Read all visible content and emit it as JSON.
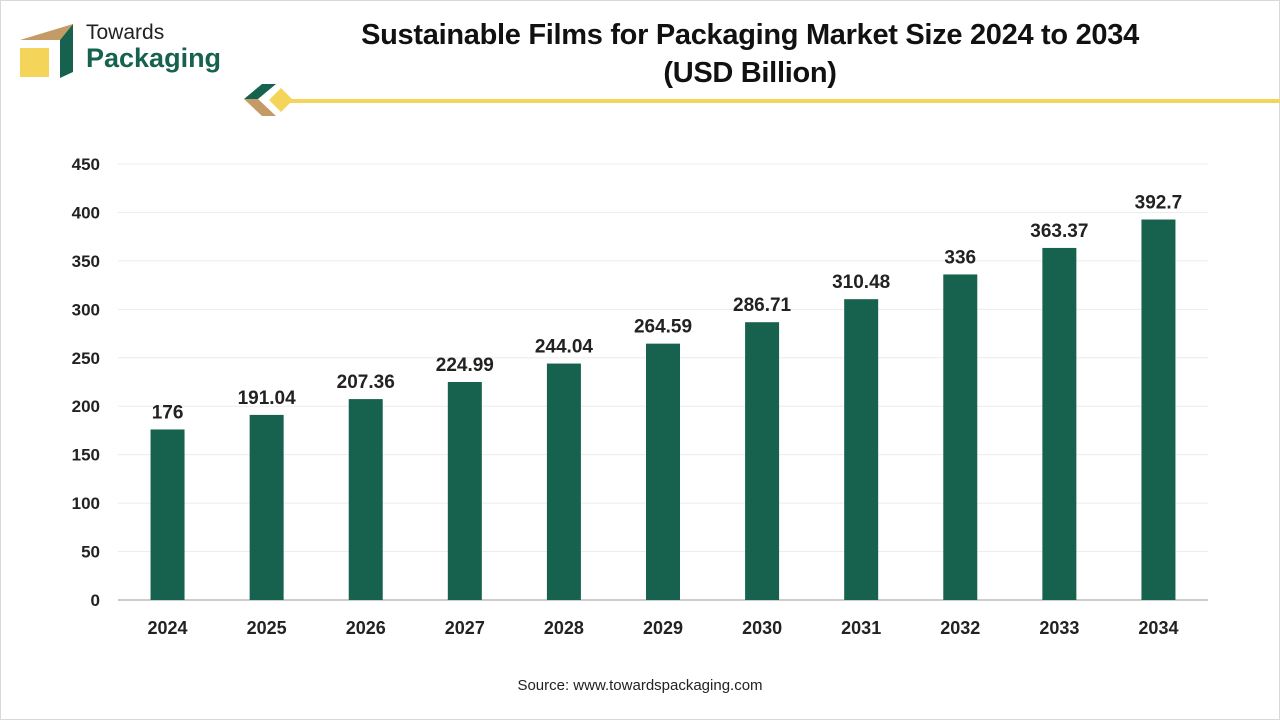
{
  "logo": {
    "line1": "Towards",
    "line2": "Packaging"
  },
  "colors": {
    "bar": "#17624f",
    "accent": "#f5d45a",
    "logo_tan": "#c49a66"
  },
  "source": "Source: www.towardspackaging.com",
  "chart_data": {
    "type": "bar",
    "title": "Sustainable Films for Packaging Market Size 2024 to 2034 (USD Billion)",
    "title_lines": [
      "Sustainable Films for Packaging Market Size 2024 to 2034",
      "(USD Billion)"
    ],
    "categories": [
      "2024",
      "2025",
      "2026",
      "2027",
      "2028",
      "2029",
      "2030",
      "2031",
      "2032",
      "2033",
      "2034"
    ],
    "values": [
      176,
      191.04,
      207.36,
      224.99,
      244.04,
      264.59,
      286.71,
      310.48,
      336,
      363.37,
      392.7
    ],
    "labels": [
      "176",
      "191.04",
      "207.36",
      "224.99",
      "244.04",
      "264.59",
      "286.71",
      "310.48",
      "336",
      "363.37",
      "392.7"
    ],
    "ylim": [
      0,
      450
    ],
    "yticks": [
      0,
      50,
      100,
      150,
      200,
      250,
      300,
      350,
      400,
      450
    ],
    "grid": true,
    "xlabel": "",
    "ylabel": ""
  }
}
